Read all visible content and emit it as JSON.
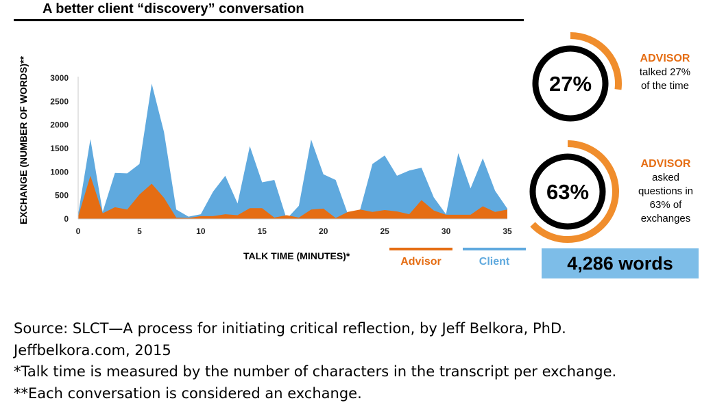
{
  "title": "A better client “discovery” conversation",
  "colors": {
    "advisor": "#e56d13",
    "client": "#5fa9de",
    "advisor_ring": "#f08d2c",
    "words_box": "#7dbde8"
  },
  "chart_data": {
    "type": "area",
    "stacked": false,
    "xlabel": "TALK TIME (MINUTES)*",
    "ylabel": "EXCHANGE (NUMBER OF WORDS)**",
    "xlim": [
      0,
      35
    ],
    "ylim": [
      0,
      3000
    ],
    "xticks": [
      "0",
      "5",
      "10",
      "15",
      "20",
      "25",
      "30",
      "35"
    ],
    "yticks": [
      "0",
      "500",
      "1000",
      "1500",
      "2000",
      "2500",
      "3000"
    ],
    "grid": false,
    "legend_position": "bottom-right",
    "series": [
      {
        "name": "Client",
        "color": "#5fa9de",
        "x": [
          0,
          1,
          2,
          3,
          4,
          5,
          6,
          7,
          8,
          9,
          10,
          11,
          12,
          13,
          14,
          15,
          16,
          17,
          18,
          19,
          20,
          21,
          22,
          23,
          24,
          25,
          26,
          27,
          28,
          29,
          30,
          31,
          32,
          33,
          34,
          35
        ],
        "values": [
          100,
          1700,
          150,
          980,
          970,
          1170,
          2880,
          1850,
          200,
          50,
          100,
          580,
          920,
          330,
          1550,
          780,
          830,
          0,
          280,
          1690,
          950,
          830,
          100,
          200,
          1170,
          1350,
          920,
          1030,
          1090,
          460,
          100,
          1400,
          650,
          1290,
          600,
          220
        ]
      },
      {
        "name": "Advisor",
        "color": "#e56d13",
        "x": [
          0,
          1,
          2,
          3,
          4,
          5,
          6,
          7,
          8,
          9,
          10,
          11,
          12,
          13,
          14,
          15,
          16,
          17,
          18,
          19,
          20,
          21,
          22,
          23,
          24,
          25,
          26,
          27,
          28,
          29,
          30,
          31,
          32,
          33,
          34,
          35
        ],
        "values": [
          50,
          920,
          120,
          250,
          200,
          520,
          750,
          450,
          30,
          20,
          60,
          60,
          100,
          80,
          230,
          230,
          30,
          80,
          30,
          200,
          220,
          20,
          150,
          200,
          150,
          190,
          160,
          100,
          400,
          180,
          90,
          90,
          90,
          270,
          150,
          200
        ]
      }
    ]
  },
  "stats": [
    {
      "value": "27%",
      "fraction": 0.27,
      "head": "ADVISOR",
      "lines": [
        "talked 27%",
        "of the time"
      ]
    },
    {
      "value": "63%",
      "fraction": 0.63,
      "head": "ADVISOR",
      "lines": [
        "asked",
        "questions in",
        "63% of",
        "exchanges"
      ]
    }
  ],
  "total_words": "4,286 words",
  "notes": [
    "Source: SLCT—A process for initiating critical reflection, by Jeff Belkora, PhD.",
    "Jeffbelkora.com, 2015",
    "*Talk time is measured by the number of characters in the transcript per exchange.",
    "**Each conversation is considered an exchange."
  ]
}
